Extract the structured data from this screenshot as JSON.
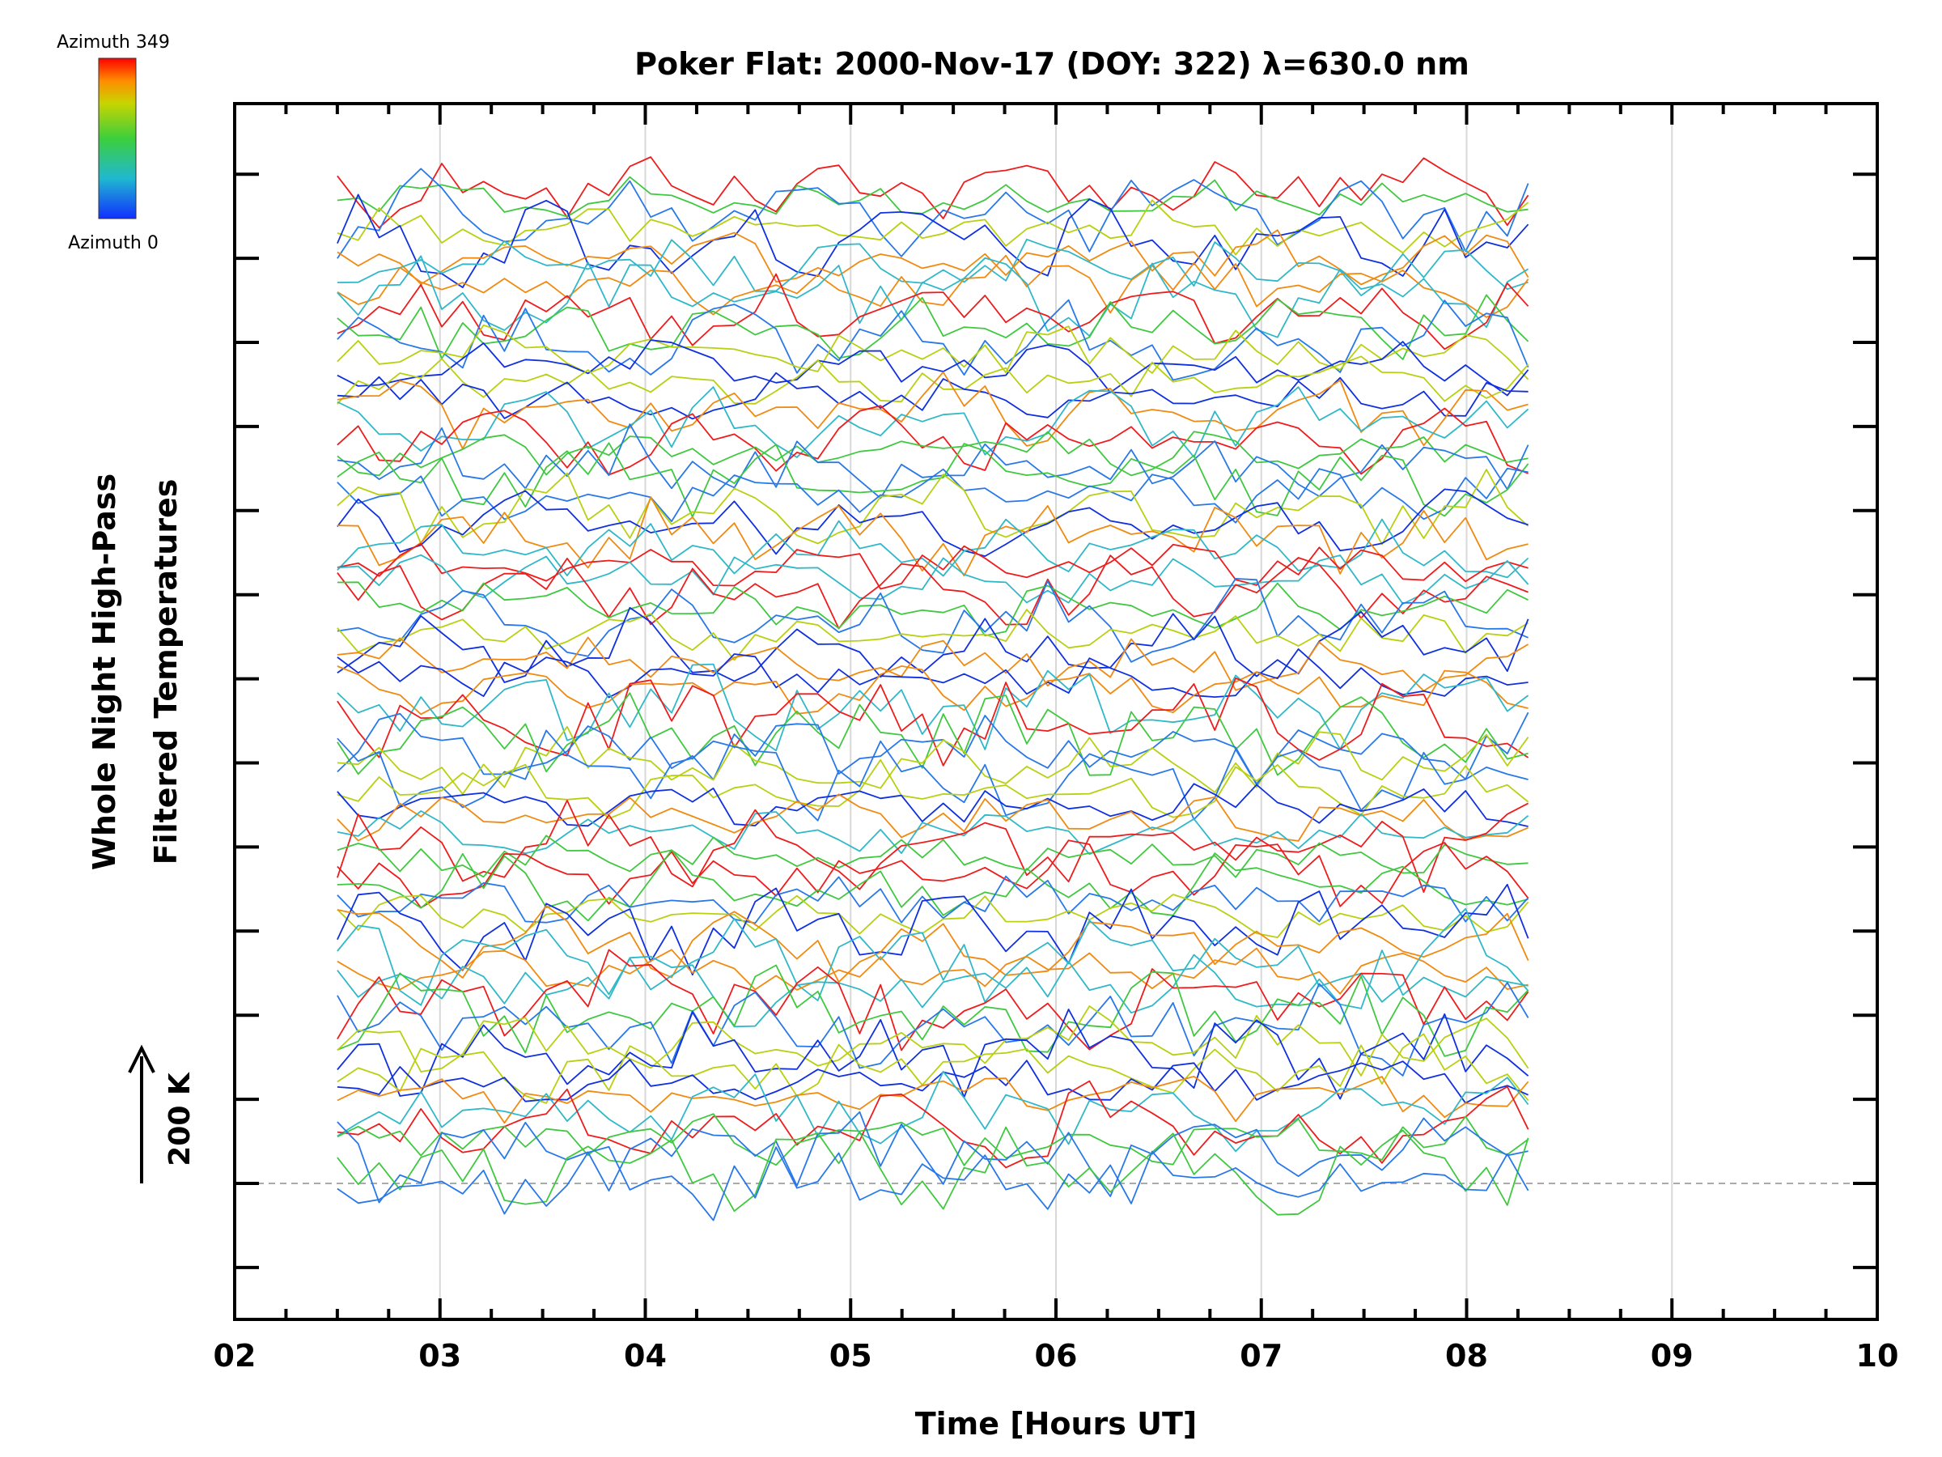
{
  "chart_data": {
    "type": "line",
    "title": "Poker Flat: 2000-Nov-17 (DOY: 322) λ=630.0 nm",
    "xlabel": "Time [Hours UT]",
    "ylabel": [
      "Whole Night High-Pass",
      "Filtered Temperatures"
    ],
    "x_ticks": [
      "02",
      "03",
      "04",
      "05",
      "06",
      "07",
      "08",
      "09",
      "10"
    ],
    "xlim": [
      2,
      10
    ],
    "x_range_data": [
      2.5,
      8.3
    ],
    "scale_bar_label": "200 K",
    "colorbar": {
      "top_label": "Azimuth 349",
      "bottom_label": "Azimuth 0",
      "colors": [
        "#ff0000",
        "#ff8c00",
        "#c8d400",
        "#3ccf3c",
        "#20b8d0",
        "#1030ff"
      ]
    },
    "colors": {
      "red": "#ee1c1c",
      "orange": "#f08a10",
      "yellow_green": "#b8d010",
      "green": "#40c840",
      "cyan": "#30b8c8",
      "blue": "#1030e0",
      "light_blue": "#2878e8"
    },
    "grid": true,
    "series_note": ""
  }
}
